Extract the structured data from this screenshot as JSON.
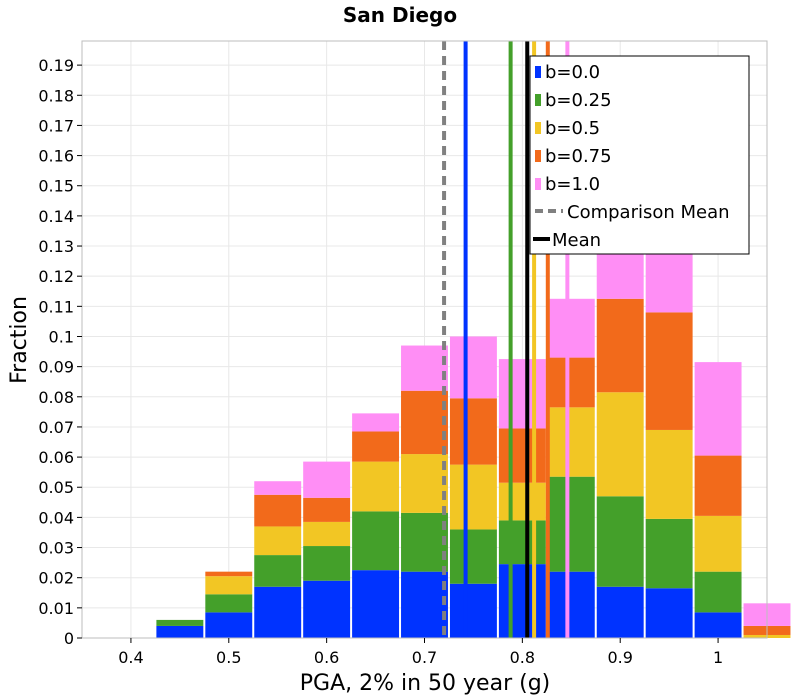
{
  "chart_data": {
    "type": "bar",
    "stacked": true,
    "title": "San Diego",
    "xlabel": "PGA, 2% in 50 year (g)",
    "ylabel": "Fraction",
    "xlim": [
      0.35,
      1.05
    ],
    "ylim": [
      0,
      0.198
    ],
    "bin_width": 0.05,
    "bin_centers": [
      0.4,
      0.45,
      0.5,
      0.55,
      0.6,
      0.65,
      0.7,
      0.75,
      0.8,
      0.85,
      0.9,
      0.95,
      1.0,
      1.05
    ],
    "x_ticks": [
      "0.4",
      "0.5",
      "0.6",
      "0.7",
      "0.8",
      "0.9",
      "1"
    ],
    "x_tick_values": [
      0.4,
      0.5,
      0.6,
      0.7,
      0.8,
      0.9,
      1.0
    ],
    "y_ticks": [
      "0",
      "0.01",
      "0.02",
      "0.03",
      "0.04",
      "0.05",
      "0.06",
      "0.07",
      "0.08",
      "0.09",
      "0.1",
      "0.11",
      "0.12",
      "0.13",
      "0.14",
      "0.15",
      "0.16",
      "0.17",
      "0.18",
      "0.19"
    ],
    "y_tick_values": [
      0,
      0.01,
      0.02,
      0.03,
      0.04,
      0.05,
      0.06,
      0.07,
      0.08,
      0.09,
      0.1,
      0.11,
      0.12,
      0.13,
      0.14,
      0.15,
      0.16,
      0.17,
      0.18,
      0.19
    ],
    "grid": true,
    "legend_position": "top-right",
    "series": [
      {
        "name": "b=0.0",
        "color": "#0033ff",
        "values": [
          0,
          0.004,
          0.0085,
          0.017,
          0.019,
          0.0225,
          0.022,
          0.018,
          0.0245,
          0.022,
          0.017,
          0.0165,
          0.0085,
          0
        ]
      },
      {
        "name": "b=0.25",
        "color": "#44a02a",
        "values": [
          0,
          0.002,
          0.006,
          0.0105,
          0.0115,
          0.0195,
          0.0195,
          0.018,
          0.0145,
          0.0315,
          0.03,
          0.023,
          0.0135,
          0
        ]
      },
      {
        "name": "b=0.5",
        "color": "#f2c624",
        "values": [
          0,
          0,
          0.006,
          0.0095,
          0.008,
          0.0165,
          0.0195,
          0.0215,
          0.0125,
          0.023,
          0.0345,
          0.0295,
          0.0185,
          0.001
        ]
      },
      {
        "name": "b=0.75",
        "color": "#f26a1b",
        "values": [
          0,
          0,
          0.0015,
          0.0105,
          0.008,
          0.01,
          0.021,
          0.022,
          0.018,
          0.0165,
          0.031,
          0.039,
          0.02,
          0.003
        ]
      },
      {
        "name": "b=1.0",
        "color": "#ff8ef5",
        "values": [
          0,
          0,
          0,
          0.0045,
          0.012,
          0.006,
          0.015,
          0.0205,
          0.023,
          0.0195,
          0.019,
          0.042,
          0.031,
          0.0075
        ]
      }
    ],
    "mean_lines": [
      {
        "series": "b=0.0",
        "x": 0.742,
        "color": "#0033ff"
      },
      {
        "series": "b=0.25",
        "x": 0.788,
        "color": "#44a02a"
      },
      {
        "series": "b=0.5",
        "x": 0.812,
        "color": "#f2c624"
      },
      {
        "series": "b=0.75",
        "x": 0.826,
        "color": "#f26a1b"
      },
      {
        "series": "b=1.0",
        "x": 0.846,
        "color": "#ff8ef5"
      }
    ],
    "comparison_mean": {
      "name": "Comparison Mean",
      "x": 0.72,
      "color": "#808080"
    },
    "overall_mean": {
      "name": "Mean",
      "x": 0.805,
      "color": "#000000"
    }
  }
}
